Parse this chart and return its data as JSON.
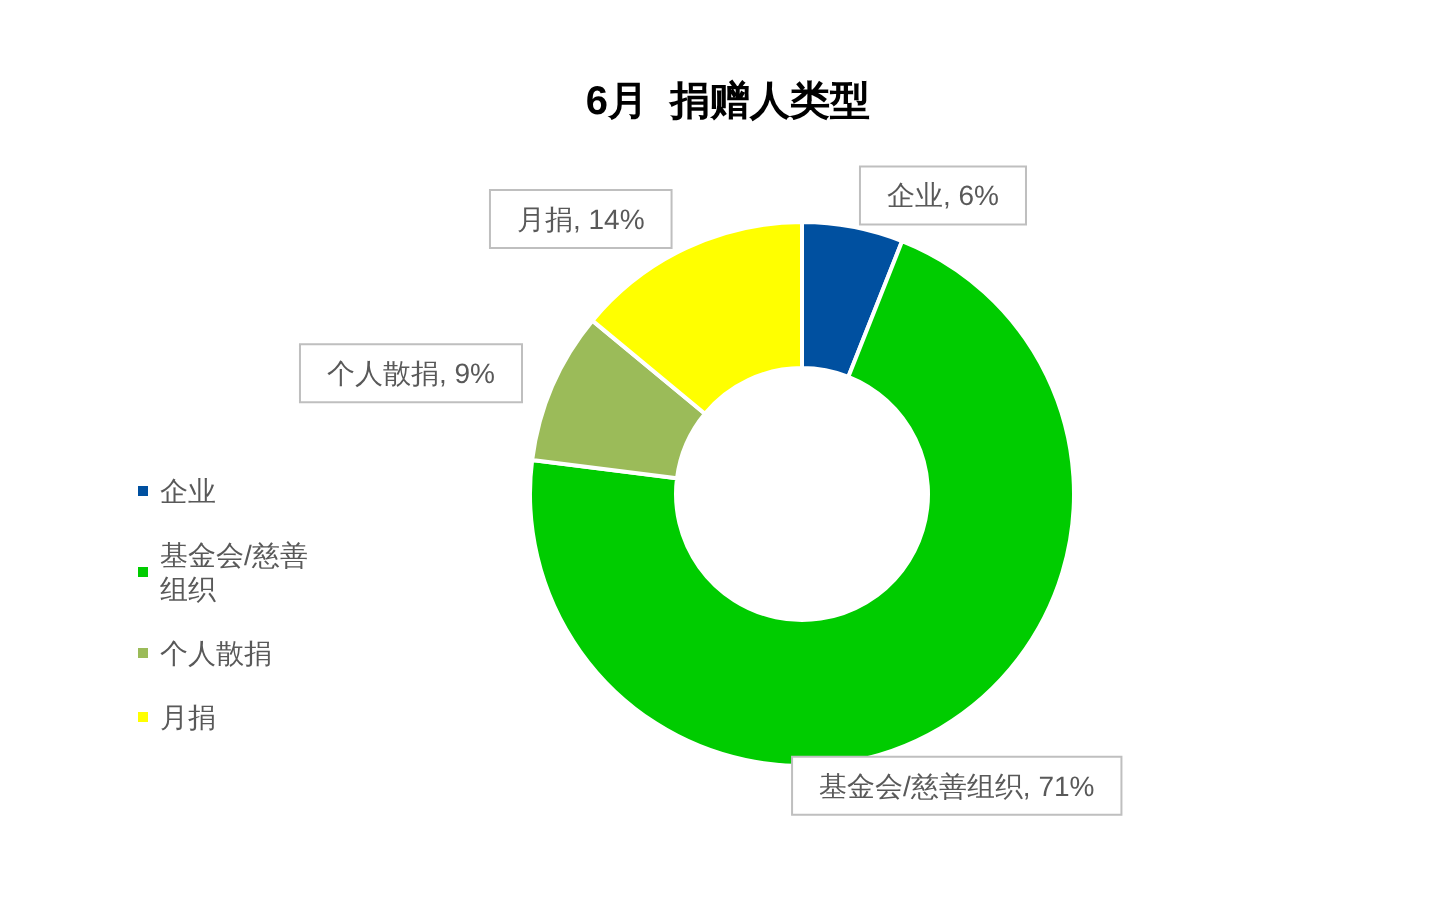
{
  "chart_data": {
    "type": "donut",
    "title": "6月  捐赠人类型",
    "categories": [
      "企业",
      "基金会/慈善组织",
      "个人散捐",
      "月捐"
    ],
    "values": [
      6,
      71,
      9,
      14
    ],
    "value_labels": [
      "企业, 6%",
      "基金会/慈善组织, 71%",
      "个人散捐, 9%",
      "月捐, 14%"
    ],
    "colors": [
      "#0050a0",
      "#00cc00",
      "#9bbb59",
      "#ffff00"
    ],
    "legend": "left"
  }
}
